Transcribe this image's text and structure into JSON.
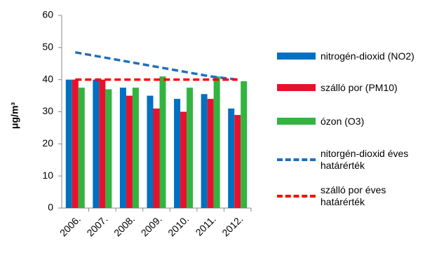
{
  "chart_data": {
    "type": "bar",
    "categories": [
      "2006.",
      "2007.",
      "2008.",
      "2009.",
      "2010.",
      "2011.",
      "2012."
    ],
    "series": [
      {
        "name": "nitrogén-dioxid (NO2)",
        "color": "#0070c0",
        "values": [
          40,
          40,
          37.5,
          35,
          34,
          35.5,
          31
        ]
      },
      {
        "name": "szálló por (PM10)",
        "color": "#e8112d",
        "values": [
          40,
          40,
          35,
          31,
          30,
          34,
          29
        ]
      },
      {
        "name": "ózon (O3)",
        "color": "#33b441",
        "values": [
          37.5,
          37,
          37.5,
          41,
          37.5,
          41,
          39.5
        ]
      },
      {
        "name": "nitorgén-dioxid éves határérték",
        "color": "#1f6fbf",
        "type": "line",
        "dashed": true,
        "values": [
          48.5,
          47,
          45.5,
          44,
          42.5,
          41,
          40
        ]
      },
      {
        "name": "szálló por éves határérték",
        "color": "#ff0000",
        "type": "line",
        "dashed": true,
        "values": [
          40,
          40,
          40,
          40,
          40,
          40,
          40
        ]
      }
    ],
    "y_label": "μg/m³",
    "ylim": [
      0,
      60
    ],
    "yticks": [
      0,
      10,
      20,
      30,
      40,
      50,
      60
    ],
    "grid": false,
    "legend": "right"
  }
}
